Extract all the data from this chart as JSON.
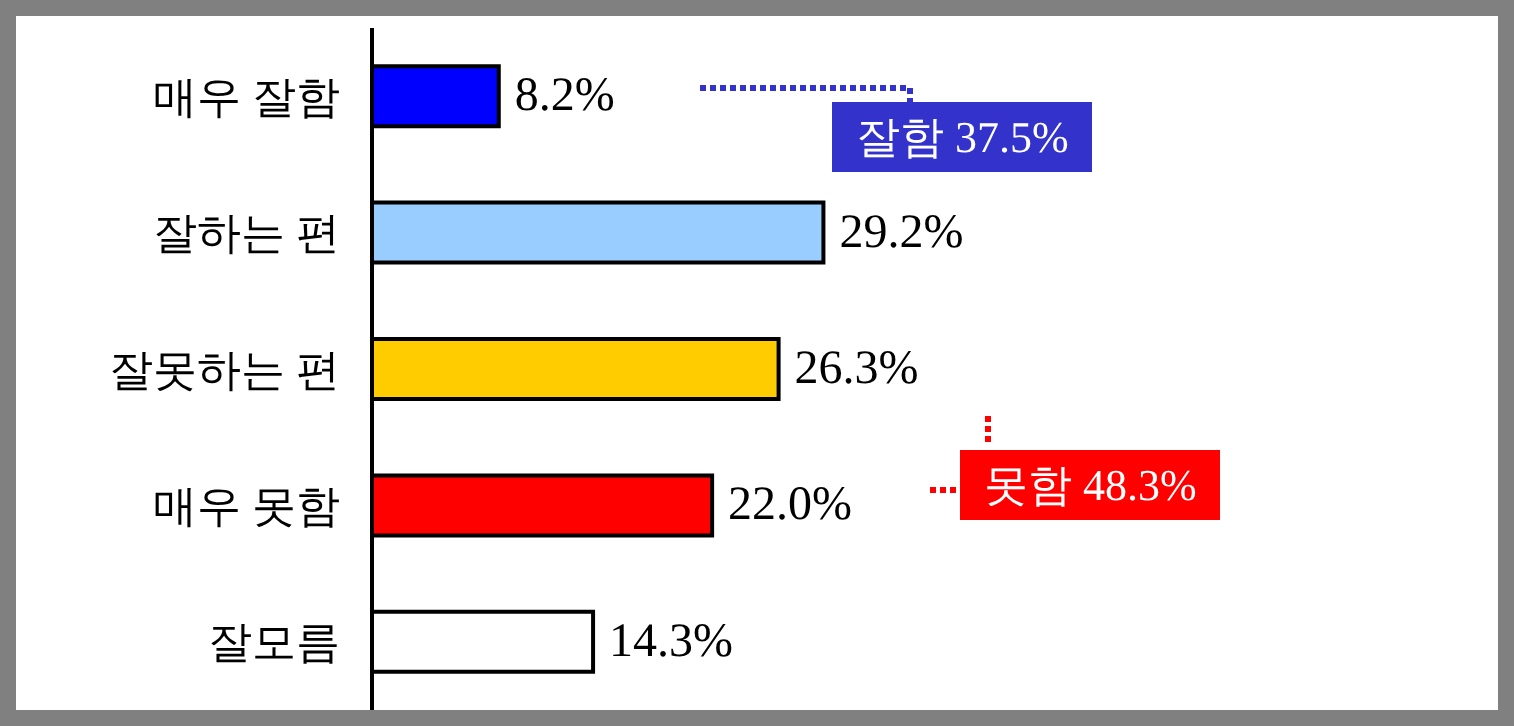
{
  "chart_data": {
    "type": "bar",
    "orientation": "horizontal",
    "categories": [
      "매우 잘함",
      "잘하는 편",
      "잘못하는 편",
      "매우 못함",
      "잘모름"
    ],
    "values": [
      8.2,
      29.2,
      26.3,
      22.0,
      14.3
    ],
    "colors": [
      "#0000ff",
      "#99ccff",
      "#ffcc00",
      "#ff0000",
      "#ffffff"
    ],
    "value_labels": [
      "8.2%",
      "29.2%",
      "26.3%",
      "22.0%",
      "14.3%"
    ],
    "annotations": [
      "잘함 37.5%",
      "못함 48.3%"
    ],
    "grid": false,
    "legend": false
  }
}
